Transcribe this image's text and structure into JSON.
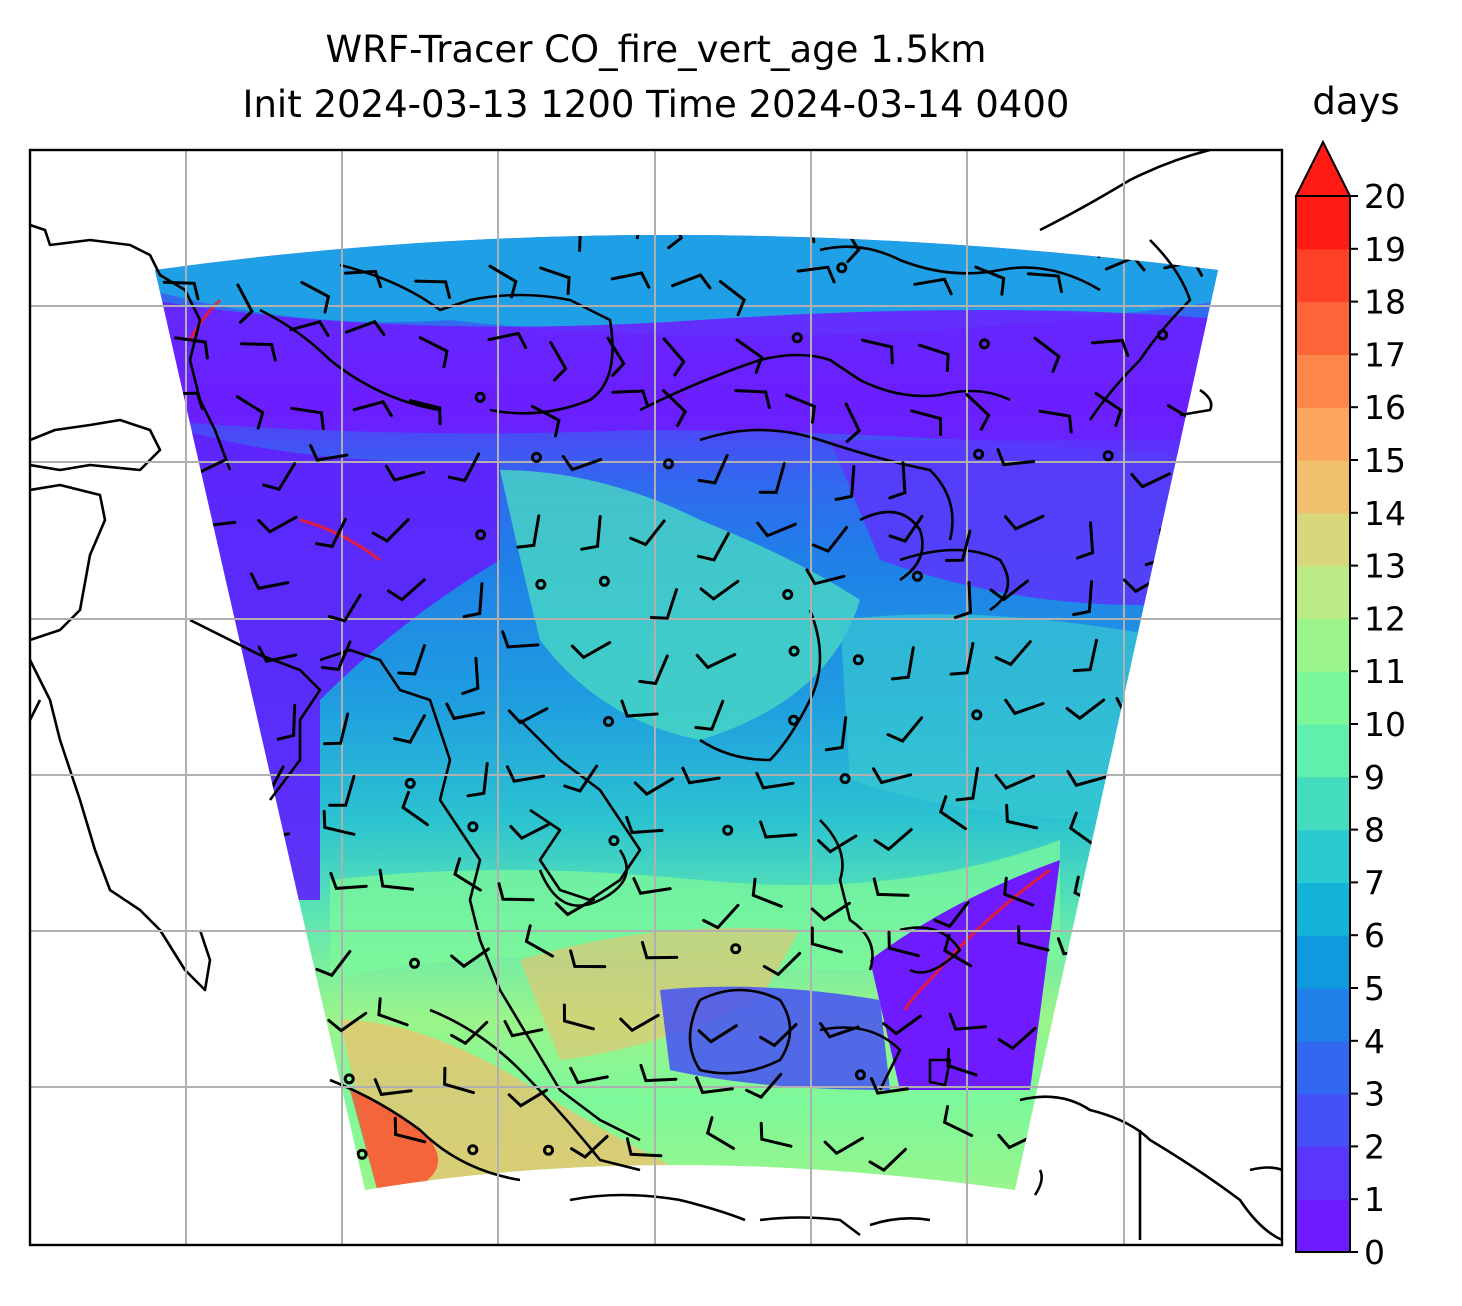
{
  "chart_data": {
    "type": "heatmap",
    "title_line1": "WRF-Tracer CO_fire_vert_age 1.5km",
    "title_line2": "Init 2024-03-13 1200 Time 2024-03-14 0400",
    "colorbar": {
      "label": "days",
      "levels": [
        0,
        1,
        2,
        3,
        4,
        5,
        6,
        7,
        8,
        9,
        10,
        11,
        12,
        13,
        14,
        15,
        16,
        17,
        18,
        19,
        20
      ],
      "tick_labels": [
        "0",
        "1",
        "2",
        "3",
        "4",
        "5",
        "6",
        "7",
        "8",
        "9",
        "10",
        "11",
        "12",
        "13",
        "14",
        "15",
        "16",
        "17",
        "18",
        "19",
        "20"
      ],
      "colors": [
        "#6f1bff",
        "#5a36fb",
        "#4550f6",
        "#3268ef",
        "#1f80e8",
        "#0f9ae0",
        "#13b4d8",
        "#29cbd0",
        "#44dcbf",
        "#60f0ad",
        "#7cf89a",
        "#9bf58a",
        "#bbeb84",
        "#d7d77c",
        "#f0c06e",
        "#fba55e",
        "#fd864b",
        "#ff653a",
        "#ff4128",
        "#ff1a14"
      ],
      "extend": "max",
      "range": [
        0,
        20
      ]
    },
    "map": {
      "grid": true,
      "coastlines": true,
      "overlay": "wind barbs"
    }
  }
}
